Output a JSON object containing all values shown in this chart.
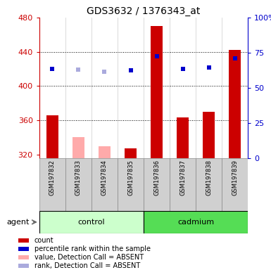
{
  "title": "GDS3632 / 1376343_at",
  "samples": [
    "GSM197832",
    "GSM197833",
    "GSM197834",
    "GSM197835",
    "GSM197836",
    "GSM197837",
    "GSM197838",
    "GSM197839"
  ],
  "bar_values": [
    366,
    340,
    330,
    327,
    470,
    363,
    370,
    442
  ],
  "bar_absent": [
    false,
    true,
    true,
    false,
    false,
    false,
    false,
    false
  ],
  "rank_values": [
    420,
    419,
    417,
    418,
    435,
    420,
    422,
    432
  ],
  "rank_absent": [
    false,
    true,
    true,
    false,
    false,
    false,
    false,
    false
  ],
  "ymin": 316,
  "ymax": 480,
  "yticks": [
    320,
    360,
    400,
    440,
    480
  ],
  "right_ytick_pcts": [
    0,
    25,
    50,
    75,
    100
  ],
  "dotted_ylines": [
    360,
    400,
    440
  ],
  "group_names": [
    "control",
    "cadmium"
  ],
  "group_starts": [
    0,
    4
  ],
  "group_ends": [
    4,
    8
  ],
  "group_bg_colors": [
    "#ccffcc",
    "#55dd55"
  ],
  "sample_box_color": "#d0d0d0",
  "bar_color_present": "#cc0000",
  "bar_color_absent": "#ffaaaa",
  "rank_color_present": "#0000cc",
  "rank_color_absent": "#aaaadd",
  "legend_colors": [
    "#cc0000",
    "#0000cc",
    "#ffaaaa",
    "#aaaadd"
  ],
  "legend_labels": [
    "count",
    "percentile rank within the sample",
    "value, Detection Call = ABSENT",
    "rank, Detection Call = ABSENT"
  ],
  "title_fontsize": 10
}
